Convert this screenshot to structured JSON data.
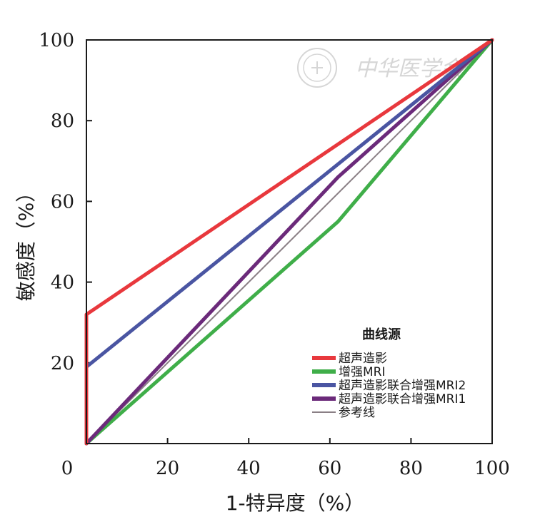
{
  "chart_data": {
    "type": "line",
    "xlabel": "1-特异度（%）",
    "ylabel": "敏感度（%）",
    "xlim": [
      0,
      100
    ],
    "ylim": [
      0,
      100
    ],
    "x_ticks": [
      "0",
      "20",
      "40",
      "60",
      "80",
      "100"
    ],
    "y_ticks": [
      "20",
      "40",
      "60",
      "80",
      "100"
    ],
    "grid": false,
    "legend_title": "曲线源",
    "legend_position": "bottom-right",
    "series": [
      {
        "name": "超声造影",
        "color": "#e8383d",
        "width": 5,
        "points": [
          [
            0,
            0
          ],
          [
            0,
            32
          ],
          [
            100,
            100
          ]
        ]
      },
      {
        "name": "增强MRI",
        "color": "#3fae49",
        "width": 5,
        "points": [
          [
            0,
            0
          ],
          [
            62,
            55
          ],
          [
            100,
            100
          ]
        ]
      },
      {
        "name": "超声造影联合增强MRI2",
        "color": "#4a55a2",
        "width": 5,
        "points": [
          [
            0,
            0
          ],
          [
            0,
            19
          ],
          [
            100,
            100
          ]
        ]
      },
      {
        "name": "超声造影联合增强MRI1",
        "color": "#6b2a7a",
        "width": 5,
        "points": [
          [
            0,
            0
          ],
          [
            62,
            66
          ],
          [
            100,
            100
          ]
        ]
      },
      {
        "name": "参考线",
        "color": "#8a7f85",
        "width": 2,
        "points": [
          [
            0,
            0
          ],
          [
            100,
            100
          ]
        ]
      }
    ]
  },
  "watermark": {
    "text": "中华医学会"
  }
}
